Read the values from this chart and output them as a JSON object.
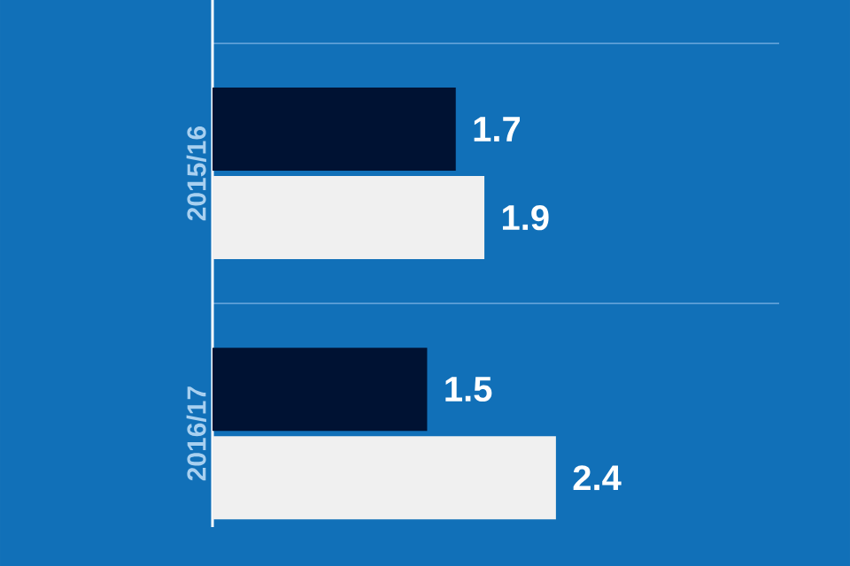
{
  "chart_data": {
    "type": "bar",
    "orientation": "horizontal",
    "categories": [
      "2015/16",
      "2016/17"
    ],
    "series": [
      {
        "color": "#001233",
        "values": [
          1.7,
          1.5
        ]
      },
      {
        "color": "#f0f0f0",
        "values": [
          1.9,
          2.4
        ]
      }
    ],
    "data_labels": true,
    "grid": "y"
  }
}
